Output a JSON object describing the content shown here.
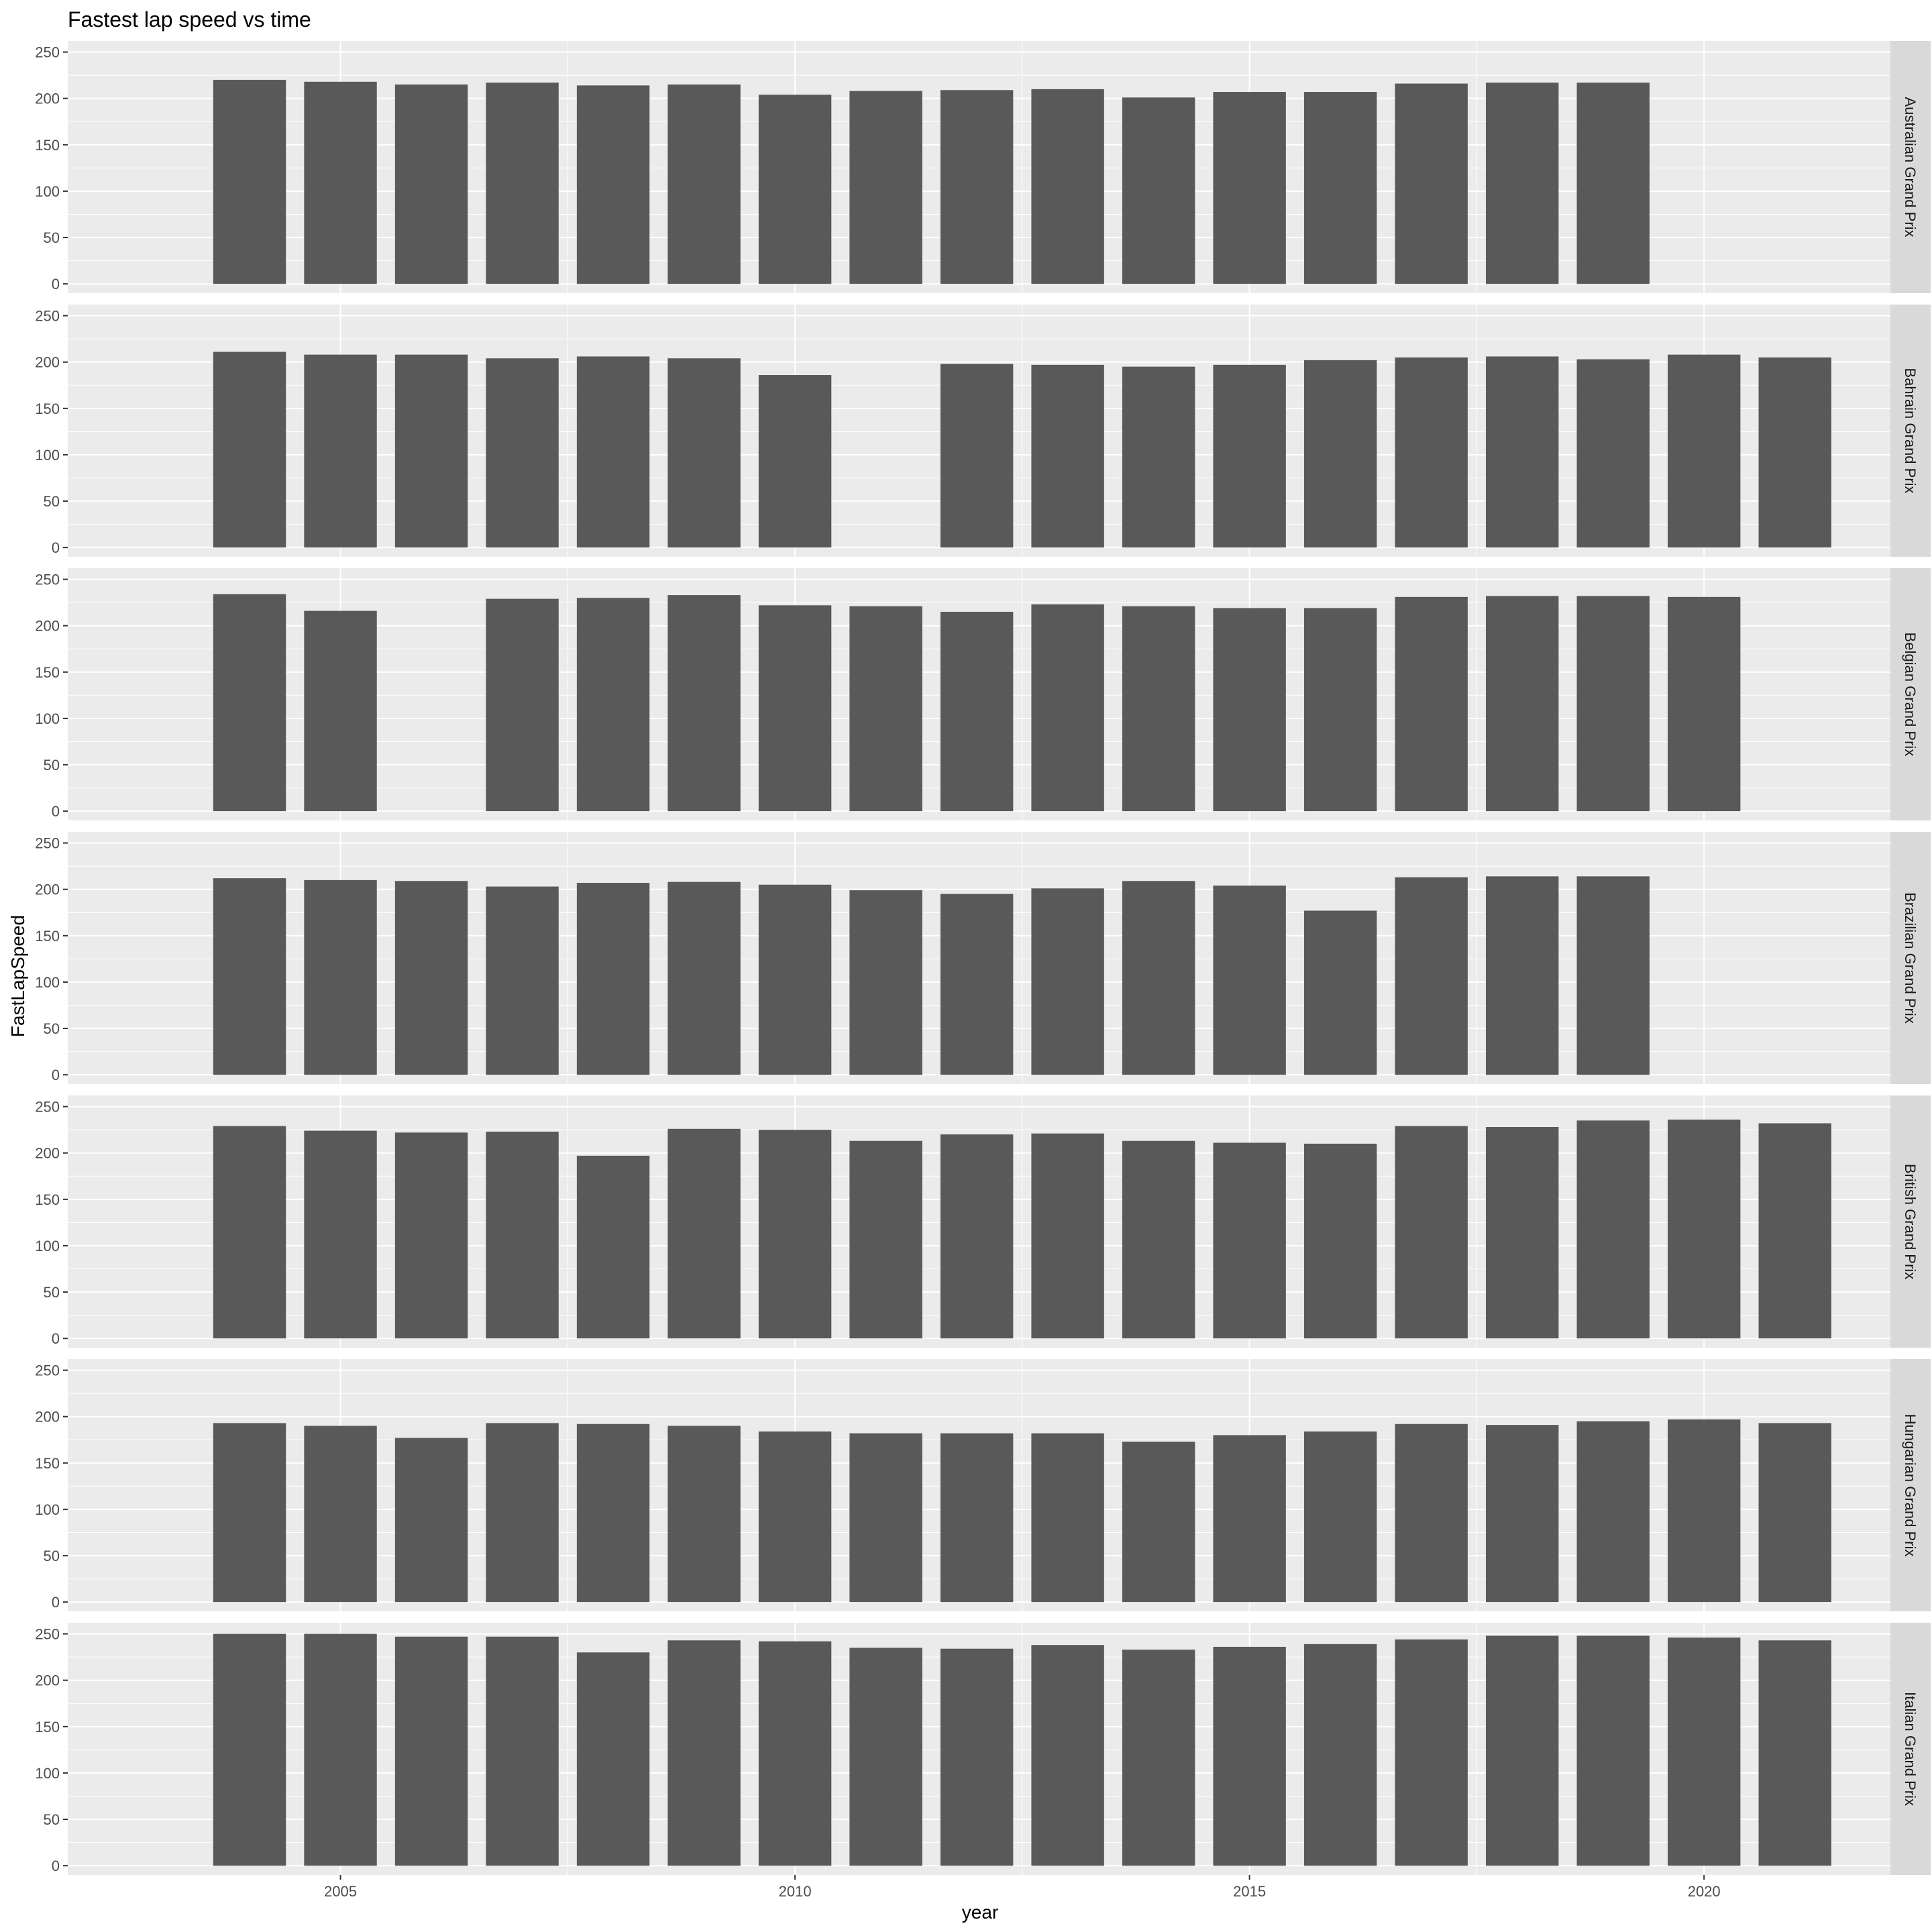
{
  "chart_data": {
    "type": "bar",
    "title": "Fastest lap speed vs time",
    "xlabel": "year",
    "ylabel": "FastLapSpeed",
    "xlim": [
      2002.0,
      2022.05
    ],
    "ylim": [
      -10,
      262
    ],
    "x_ticks": [
      2005,
      2010,
      2015,
      2020
    ],
    "y_ticks": [
      0,
      50,
      100,
      150,
      200,
      250
    ],
    "grid": true,
    "colors": {
      "bar": "#595959",
      "panel_bg": "#ebebeb",
      "grid_major": "#ffffff",
      "strip_bg": "#d9d9d9"
    },
    "panels": [
      {
        "name": "Australian Grand Prix",
        "x": [
          2004,
          2005,
          2006,
          2007,
          2008,
          2009,
          2010,
          2011,
          2012,
          2013,
          2014,
          2015,
          2016,
          2017,
          2018,
          2019
        ],
        "values": [
          220,
          218,
          215,
          217,
          214,
          215,
          204,
          208,
          209,
          210,
          201,
          207,
          207,
          216,
          217,
          217
        ]
      },
      {
        "name": "Bahrain Grand Prix",
        "x": [
          2004,
          2005,
          2006,
          2007,
          2008,
          2009,
          2010,
          2012,
          2013,
          2014,
          2015,
          2016,
          2017,
          2018,
          2019,
          2020,
          2021
        ],
        "values": [
          211,
          208,
          208,
          204,
          206,
          204,
          186,
          198,
          197,
          195,
          197,
          202,
          205,
          206,
          203,
          208,
          205
        ]
      },
      {
        "name": "Belgian Grand Prix",
        "x": [
          2004,
          2005,
          2007,
          2008,
          2009,
          2010,
          2011,
          2012,
          2013,
          2014,
          2015,
          2016,
          2017,
          2018,
          2019,
          2020
        ],
        "values": [
          234,
          216,
          229,
          230,
          233,
          222,
          221,
          215,
          223,
          221,
          219,
          219,
          231,
          232,
          232,
          231
        ]
      },
      {
        "name": "Brazilian Grand Prix",
        "x": [
          2004,
          2005,
          2006,
          2007,
          2008,
          2009,
          2010,
          2011,
          2012,
          2013,
          2014,
          2015,
          2016,
          2017,
          2018,
          2019
        ],
        "values": [
          212,
          210,
          209,
          203,
          207,
          208,
          205,
          199,
          195,
          201,
          209,
          204,
          177,
          213,
          214,
          214
        ]
      },
      {
        "name": "British Grand Prix",
        "x": [
          2004,
          2005,
          2006,
          2007,
          2008,
          2009,
          2010,
          2011,
          2012,
          2013,
          2014,
          2015,
          2016,
          2017,
          2018,
          2019,
          2020,
          2021
        ],
        "values": [
          229,
          224,
          222,
          223,
          197,
          226,
          225,
          213,
          220,
          221,
          213,
          211,
          210,
          229,
          228,
          235,
          236,
          232
        ]
      },
      {
        "name": "Hungarian Grand Prix",
        "x": [
          2004,
          2005,
          2006,
          2007,
          2008,
          2009,
          2010,
          2011,
          2012,
          2013,
          2014,
          2015,
          2016,
          2017,
          2018,
          2019,
          2020,
          2021
        ],
        "values": [
          193,
          190,
          177,
          193,
          192,
          190,
          184,
          182,
          182,
          182,
          173,
          180,
          184,
          192,
          191,
          195,
          197,
          193
        ]
      },
      {
        "name": "Italian Grand Prix",
        "x": [
          2004,
          2005,
          2006,
          2007,
          2008,
          2009,
          2010,
          2011,
          2012,
          2013,
          2014,
          2015,
          2016,
          2017,
          2018,
          2019,
          2020,
          2021
        ],
        "values": [
          250,
          250,
          247,
          247,
          230,
          243,
          242,
          235,
          234,
          238,
          233,
          236,
          239,
          244,
          248,
          248,
          246,
          243
        ]
      }
    ]
  }
}
